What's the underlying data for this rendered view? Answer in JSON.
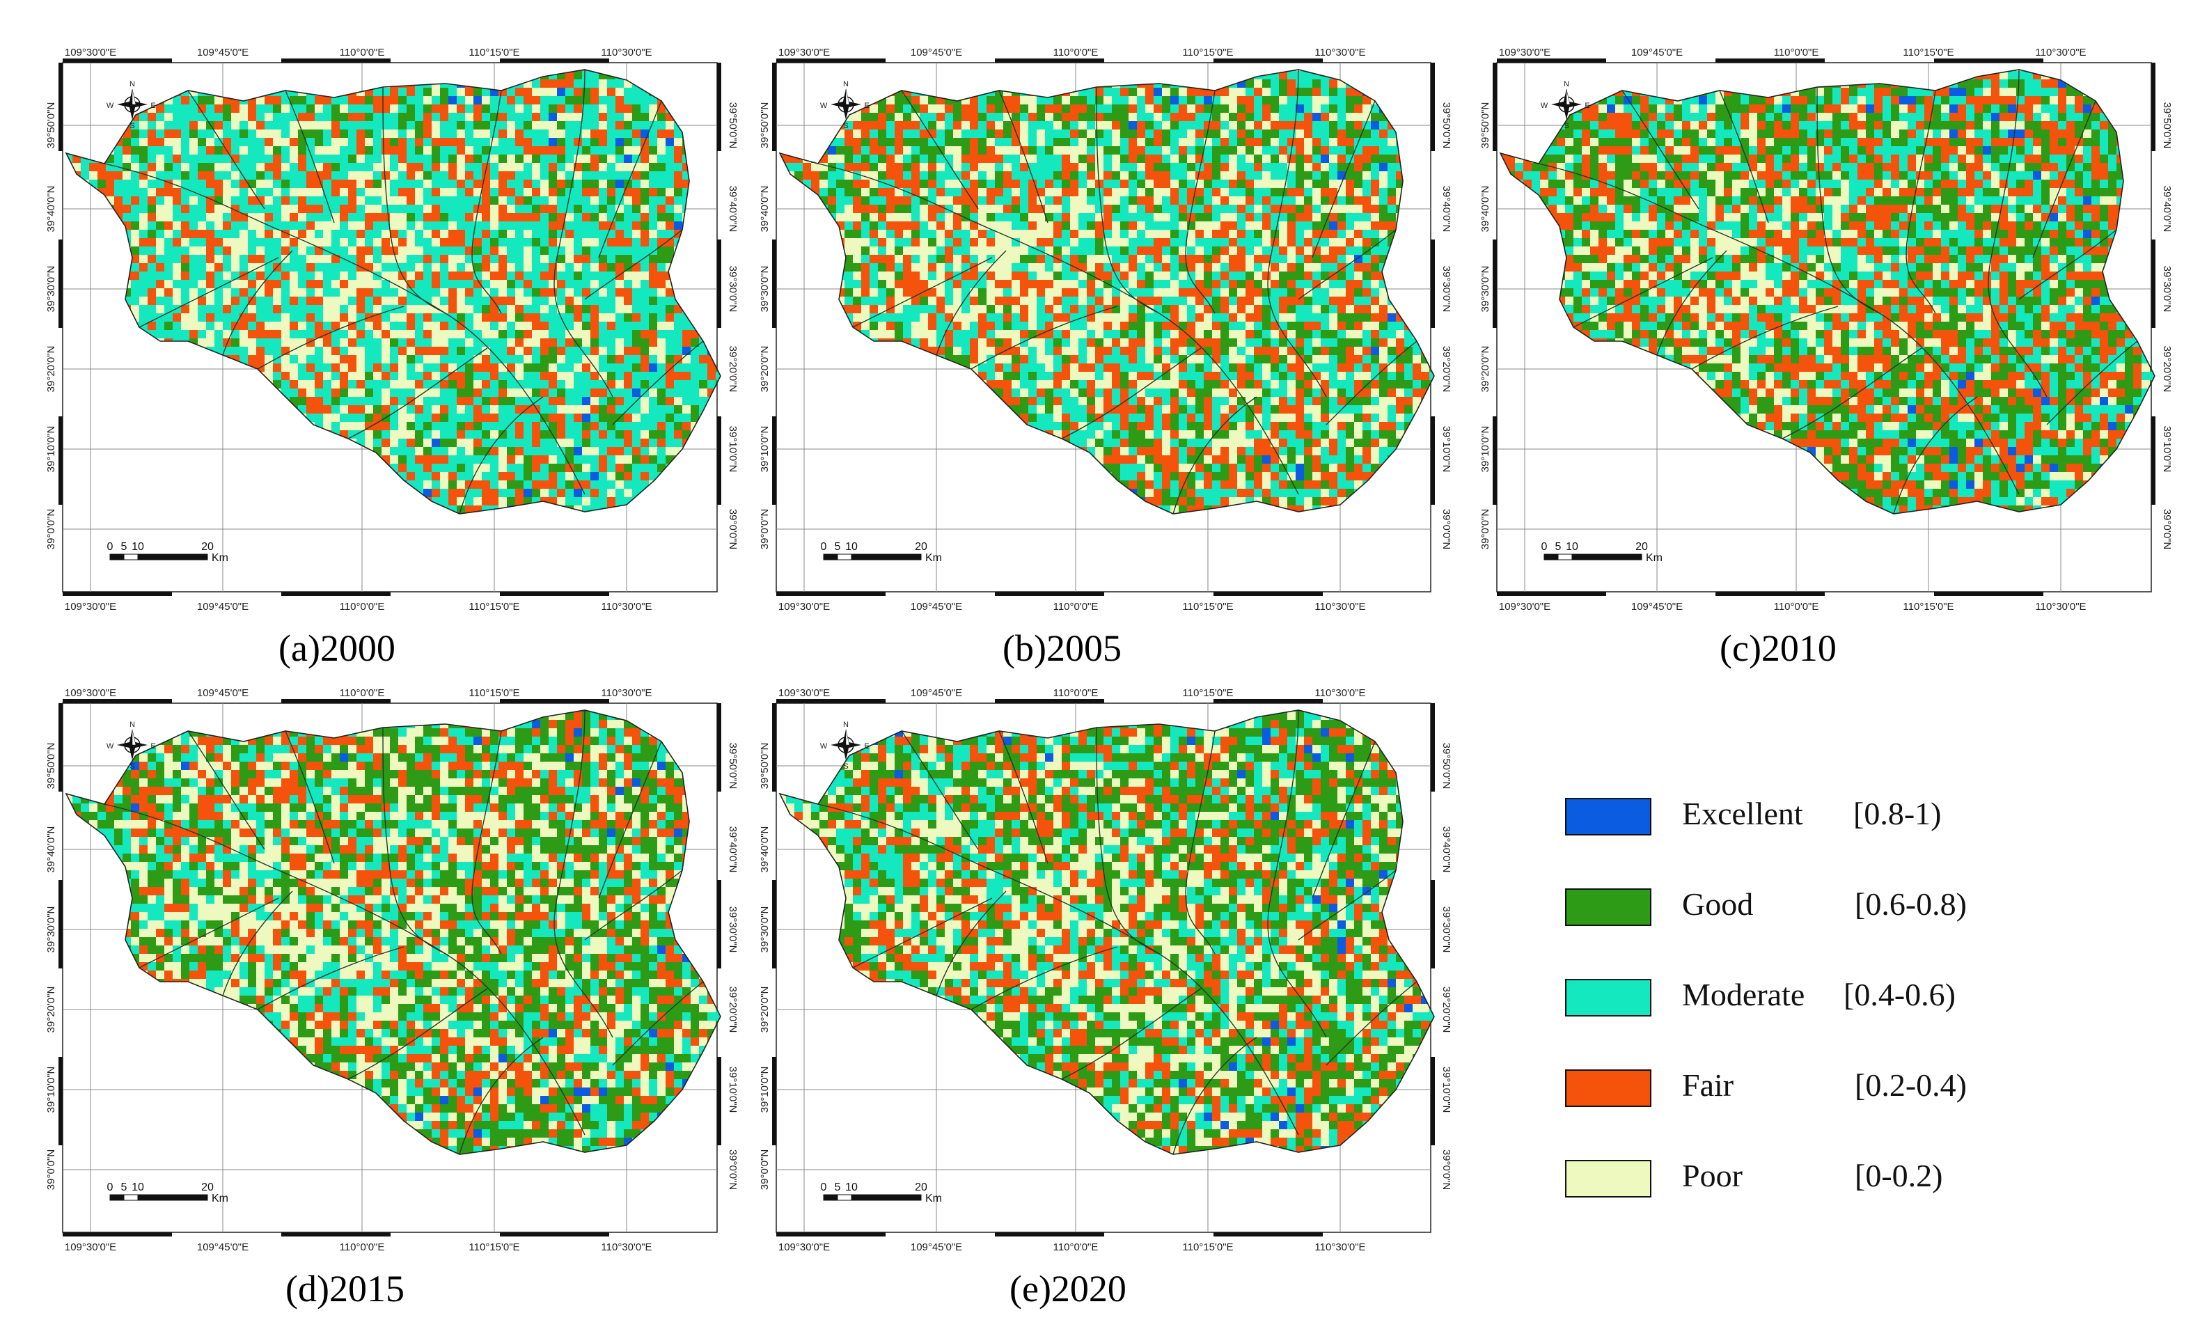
{
  "panels": [
    {
      "id": "a",
      "caption": "(a)2000",
      "year": "2000",
      "mix": {
        "excellent": 0.04,
        "good": 0.14,
        "moderate": 0.44,
        "fair": 0.24,
        "poor": 0.14
      }
    },
    {
      "id": "b",
      "caption": "(b)2005",
      "year": "2005",
      "mix": {
        "excellent": 0.03,
        "good": 0.22,
        "moderate": 0.3,
        "fair": 0.28,
        "poor": 0.17
      }
    },
    {
      "id": "c",
      "caption": "(c)2010",
      "year": "2010",
      "mix": {
        "excellent": 0.04,
        "good": 0.3,
        "moderate": 0.26,
        "fair": 0.3,
        "poor": 0.1
      }
    },
    {
      "id": "d",
      "caption": "(d)2015",
      "year": "2015",
      "mix": {
        "excellent": 0.04,
        "good": 0.32,
        "moderate": 0.22,
        "fair": 0.22,
        "poor": 0.2
      }
    },
    {
      "id": "e",
      "caption": "(e)2020",
      "year": "2020",
      "mix": {
        "excellent": 0.04,
        "good": 0.32,
        "moderate": 0.22,
        "fair": 0.22,
        "poor": 0.2
      }
    }
  ],
  "axes": {
    "lon_top": [
      "109°30'0\"E",
      "109°45'0\"E",
      "110°0'0\"E",
      "110°15'0\"E",
      "110°30'0\"E"
    ],
    "lon_bottom": [
      "109°30'0\"E",
      "109°45'0\"E",
      "110°0'0\"E",
      "110°15'0\"E",
      "110°30'0\"E"
    ],
    "lat": [
      "39°50'0\"N",
      "39°40'0\"N",
      "39°30'0\"N",
      "39°20'0\"N",
      "39°10'0\"N",
      "39°0'0\"N"
    ]
  },
  "compass": {
    "n": "N",
    "s": "S",
    "e": "E",
    "w": "W"
  },
  "scale_bar": {
    "ticks": [
      "0",
      "5",
      "10",
      "20"
    ],
    "unit": "Km"
  },
  "legend": {
    "items": [
      {
        "name": "Excellent",
        "range": "[0.8-1)",
        "color": "#0b5ce0"
      },
      {
        "name": "Good",
        "range": "[0.6-0.8)",
        "color": "#2e9b16"
      },
      {
        "name": "Moderate",
        "range": "[0.4-0.6)",
        "color": "#14e8bf"
      },
      {
        "name": "Fair",
        "range": "[0.2-0.4)",
        "color": "#f5520b"
      },
      {
        "name": "Poor",
        "range": "[0-0.2)",
        "color": "#eef9c0"
      }
    ]
  }
}
